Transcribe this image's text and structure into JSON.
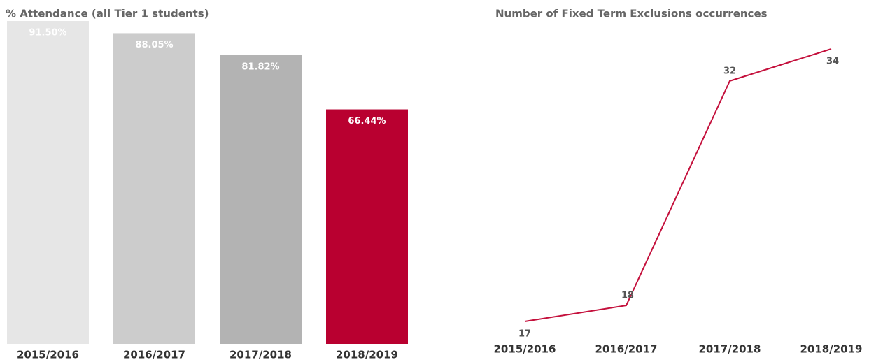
{
  "chart_data": [
    {
      "type": "bar",
      "title": "% Attendance (all Tier 1 students)",
      "categories": [
        "2015/2016",
        "2016/2017",
        "2017/2018",
        "2018/2019"
      ],
      "values": [
        91.5,
        88.05,
        81.82,
        66.44
      ],
      "value_labels": [
        "91.50%",
        "88.05%",
        "81.82%",
        "66.44%"
      ],
      "colors": [
        "#e6e6e6",
        "#cccccc",
        "#b3b3b3",
        "#b90030"
      ]
    },
    {
      "type": "line",
      "title": "Number of Fixed Term Exclusions occurrences",
      "categories": [
        "2015/2016",
        "2016/2017",
        "2017/2018",
        "2018/2019"
      ],
      "values": [
        17,
        18,
        32,
        34
      ],
      "color": "#c4103c"
    }
  ]
}
